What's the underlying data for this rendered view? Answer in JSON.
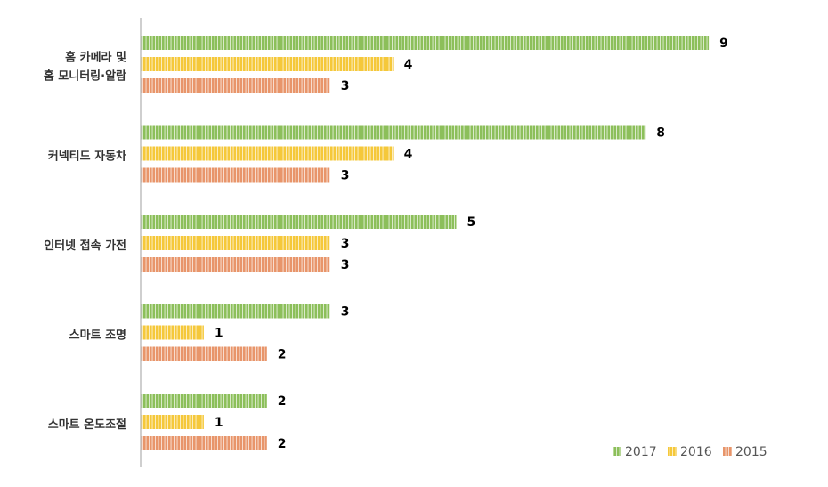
{
  "chart_data": {
    "type": "bar",
    "orientation": "horizontal",
    "categories": [
      [
        "홈 카메라 및",
        "홈 모니터링·알람"
      ],
      [
        "커넥티드 자동차"
      ],
      [
        "인터넷 접속 가전"
      ],
      [
        "스마트 조명"
      ],
      [
        "스마트 온도조절"
      ]
    ],
    "series": [
      {
        "name": "2017",
        "color": "#8cbf5a",
        "values": [
          9,
          8,
          5,
          3,
          2
        ]
      },
      {
        "name": "2016",
        "color": "#f5c83a",
        "values": [
          4,
          4,
          3,
          1,
          1
        ]
      },
      {
        "name": "2015",
        "color": "#e8956a",
        "values": [
          3,
          3,
          3,
          2,
          2
        ]
      }
    ],
    "xlim": [
      0,
      10
    ],
    "data_labels": true,
    "grid": false,
    "legend_position": "bottom-right"
  }
}
